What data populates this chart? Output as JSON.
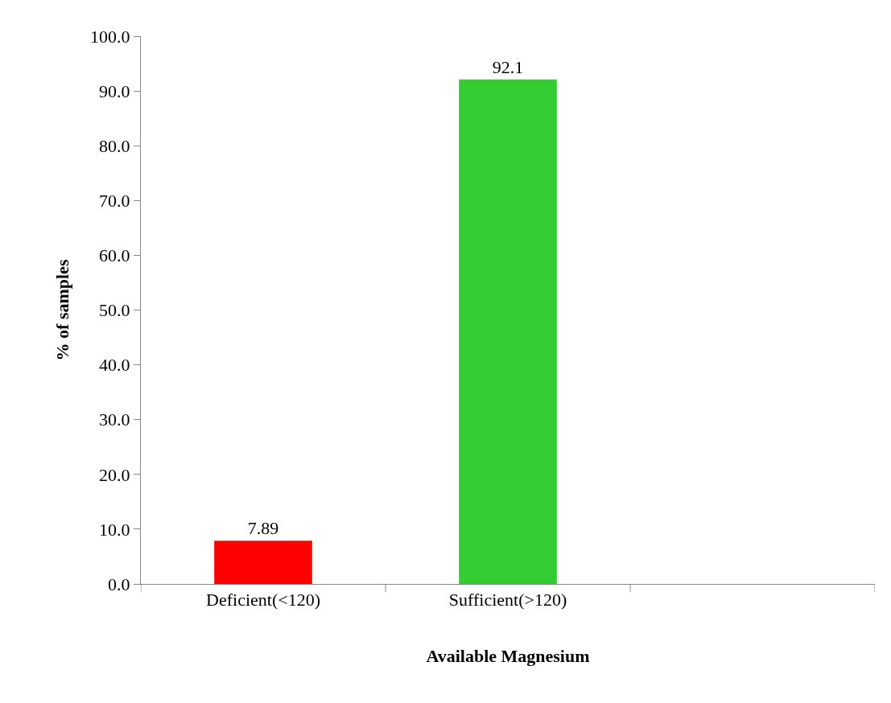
{
  "chart_data": {
    "type": "bar",
    "xlabel": "Available Magnesium",
    "ylabel": "% of samples",
    "categories": [
      "Deficient(<120)",
      "Sufficient(>120)",
      null
    ],
    "values": [
      7.89,
      92.1,
      null
    ],
    "colors": [
      "#ff0000",
      "#33cc33",
      null
    ],
    "data_labels": true,
    "ylim": [
      0,
      100
    ],
    "yticks": [
      {
        "value": 0,
        "label": "0.0"
      },
      {
        "value": 10,
        "label": "10.0"
      },
      {
        "value": 20,
        "label": "20.0"
      },
      {
        "value": 30,
        "label": "30.0"
      },
      {
        "value": 40,
        "label": "40.0"
      },
      {
        "value": 50,
        "label": "50.0"
      },
      {
        "value": 60,
        "label": "60.0"
      },
      {
        "value": 70,
        "label": "70.0"
      },
      {
        "value": 80,
        "label": "80.0"
      },
      {
        "value": 90,
        "label": "90.0"
      },
      {
        "value": 100,
        "label": "100.0"
      }
    ],
    "legend": false
  }
}
